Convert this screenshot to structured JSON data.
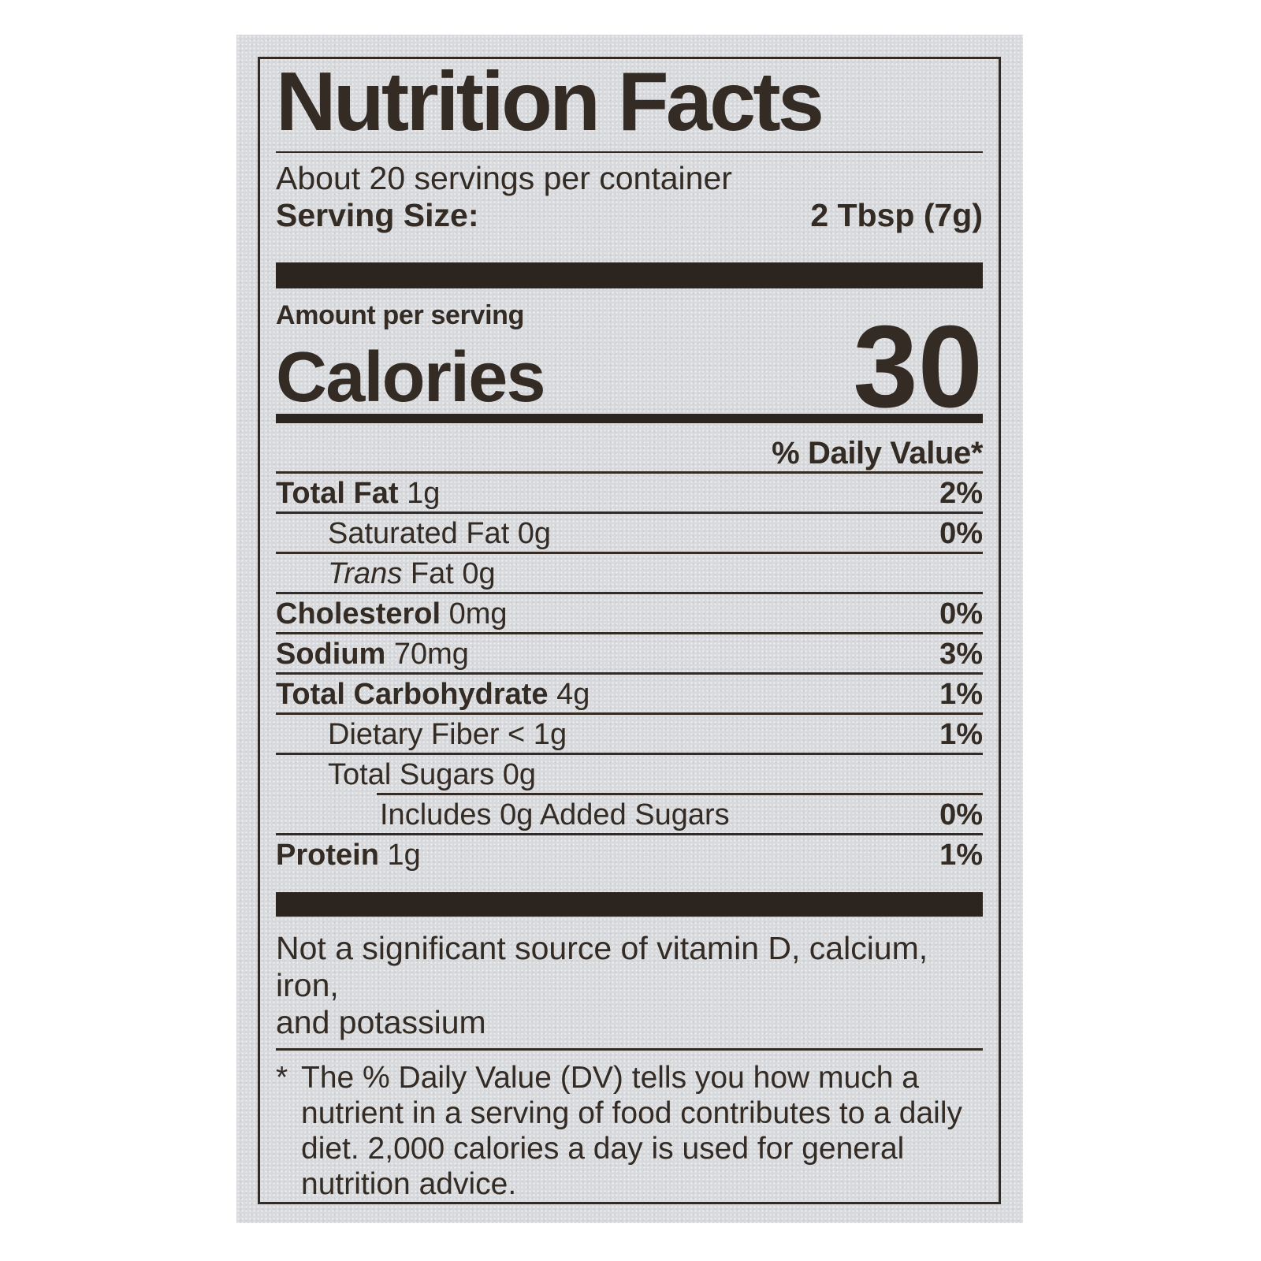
{
  "label": {
    "title": "Nutrition Facts",
    "servings_per_container": "About 20 servings per container",
    "serving_size_label": "Serving Size:",
    "serving_size_value": "2 Tbsp (7g)",
    "amount_per_serving": "Amount per serving",
    "calories_label": "Calories",
    "calories_value": "30",
    "daily_value_header": "% Daily Value*",
    "rows": [
      {
        "bold": "Total Fat",
        "text": " 1g",
        "percent": "2%",
        "indent": 0
      },
      {
        "text": "Saturated Fat 0g",
        "percent": "0%",
        "indent": 1
      },
      {
        "italic": "Trans",
        "text": " Fat 0g",
        "indent": 1
      },
      {
        "bold": "Cholesterol",
        "text": " 0mg",
        "percent": "0%",
        "indent": 0
      },
      {
        "bold": "Sodium",
        "text": " 70mg",
        "percent": "3%",
        "indent": 0
      },
      {
        "bold": "Total Carbohydrate",
        "text": " 4g",
        "percent": "1%",
        "indent": 0
      },
      {
        "text": "Dietary Fiber < 1g",
        "percent": "1%",
        "indent": 1
      },
      {
        "text": "Total Sugars 0g",
        "indent": 1
      },
      {
        "text": "Includes 0g Added Sugars",
        "percent": "0%",
        "indent": 2,
        "rule_indent": true
      },
      {
        "bold": "Protein",
        "text": " 1g",
        "percent": "1%",
        "indent": 0
      }
    ],
    "not_significant_lines": [
      "Not a significant source of vitamin D, calcium, iron,",
      "and potassium"
    ],
    "footnote_marker": "*",
    "footnote_lines": [
      "The % Daily Value (DV) tells you how much a",
      "nutrient in a serving of food contributes to a daily",
      "diet. 2,000 calories a day is used for general",
      "nutrition advice."
    ]
  },
  "colors": {
    "ink": "#332b24",
    "bar": "#2b241f",
    "paper": "#d7d9dc",
    "page": "#ffffff"
  }
}
